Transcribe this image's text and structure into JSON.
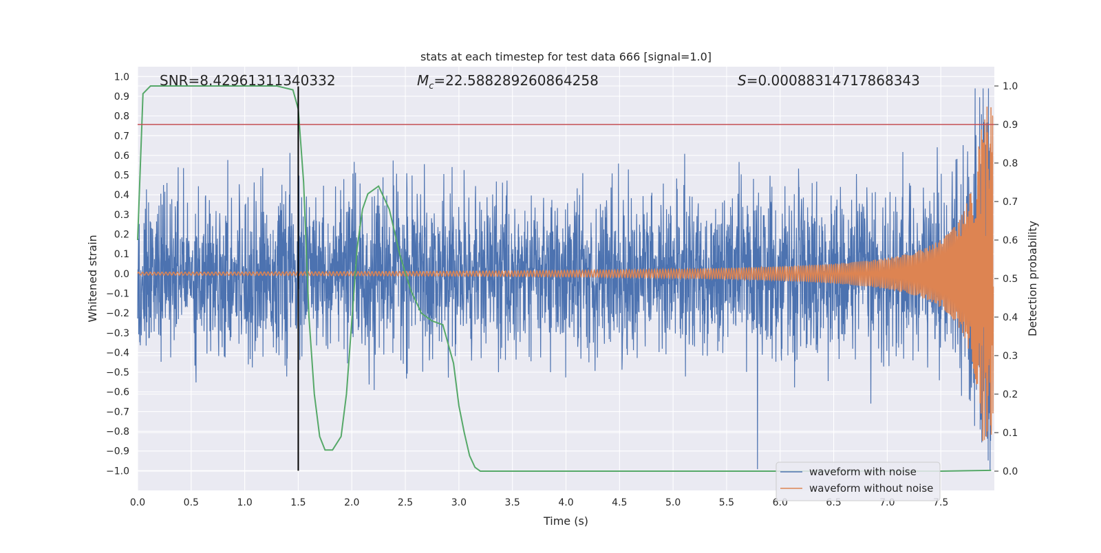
{
  "chart_data": {
    "type": "line",
    "title": "stats at each timestep for test data 666 [signal=1.0]",
    "xlabel": "Time (s)",
    "ylabel": "Whitened strain",
    "y2label": "Detection probability",
    "xlim": [
      0.0,
      8.0
    ],
    "ylim": [
      -1.1,
      1.05
    ],
    "y2lim": [
      -0.05,
      1.05
    ],
    "xticks": [
      "0.0",
      "0.5",
      "1.0",
      "1.5",
      "2.0",
      "2.5",
      "3.0",
      "3.5",
      "4.0",
      "4.5",
      "5.0",
      "5.5",
      "6.0",
      "6.5",
      "7.0",
      "7.5"
    ],
    "yticks": [
      "1.0",
      "0.9",
      "0.8",
      "0.7",
      "0.6",
      "0.5",
      "0.4",
      "0.3",
      "0.2",
      "0.1",
      "0.0",
      "−0.1",
      "−0.2",
      "−0.3",
      "−0.4",
      "−0.5",
      "−0.6",
      "−0.7",
      "−0.8",
      "−0.9",
      "−1.0"
    ],
    "y2ticks": [
      "1.0",
      "0.9",
      "0.8",
      "0.7",
      "0.6",
      "0.5",
      "0.4",
      "0.3",
      "0.2",
      "0.1",
      "0.0"
    ],
    "annotations": {
      "snr": "SNR=8.42961311340332",
      "mc_symbol": "M",
      "mc_subscript": "c",
      "mc_value": "=22.588289260864258",
      "s_symbol": "S",
      "s_value": "=0.00088314717868343"
    },
    "grid": true,
    "legend_position": "lower-right",
    "series": [
      {
        "name": "waveform with noise",
        "color": "#4c72b0",
        "description": "noisy whitened strain, amplitude roughly ±0.4 with spikes up to 0.94 and down to −1.0"
      },
      {
        "name": "waveform without noise",
        "color": "#dd8452",
        "description": "chirp signal with growing amplitude, reaching 0.85 at t≈8.0"
      }
    ],
    "detection_probability": {
      "color": "#55a868",
      "t": [
        0.0,
        0.05,
        0.12,
        0.3,
        0.6,
        1.0,
        1.3,
        1.45,
        1.5,
        1.55,
        1.6,
        1.65,
        1.7,
        1.75,
        1.82,
        1.9,
        1.95,
        2.0,
        2.05,
        2.1,
        2.15,
        2.25,
        2.35,
        2.45,
        2.55,
        2.65,
        2.75,
        2.85,
        2.95,
        3.0,
        3.05,
        3.1,
        3.15,
        3.2,
        3.3,
        5.0,
        7.5,
        7.97
      ],
      "p": [
        0.6,
        0.98,
        1.0,
        1.0,
        1.0,
        1.0,
        1.0,
        0.99,
        0.94,
        0.75,
        0.4,
        0.2,
        0.09,
        0.055,
        0.055,
        0.09,
        0.2,
        0.39,
        0.58,
        0.68,
        0.72,
        0.74,
        0.68,
        0.56,
        0.47,
        0.41,
        0.39,
        0.38,
        0.28,
        0.17,
        0.1,
        0.04,
        0.01,
        0.0,
        0.0,
        0.0,
        0.0,
        0.002
      ]
    },
    "threshold_line": {
      "value": 0.9,
      "axis": "y2",
      "color": "#c44e52"
    },
    "vertical_marker": {
      "x": 1.5,
      "ymin": -1.0,
      "ymax": 0.95,
      "color": "#000000"
    }
  }
}
